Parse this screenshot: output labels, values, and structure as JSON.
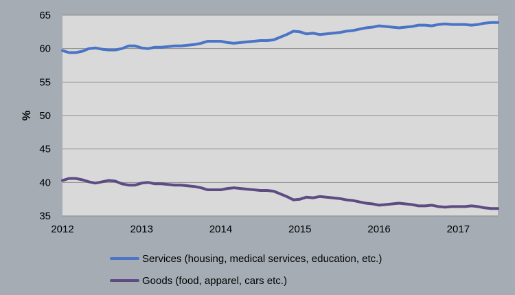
{
  "chart_data": {
    "type": "line",
    "title": "",
    "xlabel": "",
    "ylabel": "%",
    "ylim": [
      35,
      65
    ],
    "xlim": [
      "2012-01",
      "2017-07"
    ],
    "yticks": [
      "35",
      "40",
      "45",
      "50",
      "55",
      "60",
      "65"
    ],
    "xticks": [
      "2012",
      "2013",
      "2014",
      "2015",
      "2016",
      "2017"
    ],
    "grid": "horizontal",
    "legend_position": "bottom",
    "x": [
      "2012-01",
      "2012-02",
      "2012-03",
      "2012-04",
      "2012-05",
      "2012-06",
      "2012-07",
      "2012-08",
      "2012-09",
      "2012-10",
      "2012-11",
      "2012-12",
      "2013-01",
      "2013-02",
      "2013-03",
      "2013-04",
      "2013-05",
      "2013-06",
      "2013-07",
      "2013-08",
      "2013-09",
      "2013-10",
      "2013-11",
      "2013-12",
      "2014-01",
      "2014-02",
      "2014-03",
      "2014-04",
      "2014-05",
      "2014-06",
      "2014-07",
      "2014-08",
      "2014-09",
      "2014-10",
      "2014-11",
      "2014-12",
      "2015-01",
      "2015-02",
      "2015-03",
      "2015-04",
      "2015-05",
      "2015-06",
      "2015-07",
      "2015-08",
      "2015-09",
      "2015-10",
      "2015-11",
      "2015-12",
      "2016-01",
      "2016-02",
      "2016-03",
      "2016-04",
      "2016-05",
      "2016-06",
      "2016-07",
      "2016-08",
      "2016-09",
      "2016-10",
      "2016-11",
      "2016-12",
      "2017-01",
      "2017-02",
      "2017-03",
      "2017-04",
      "2017-05",
      "2017-06",
      "2017-07"
    ],
    "series": [
      {
        "name": "Services (housing, medical services, education, etc.)",
        "color": "#4a74c6",
        "values": [
          59.7,
          59.4,
          59.4,
          59.6,
          60.0,
          60.1,
          59.9,
          59.8,
          59.8,
          60.0,
          60.4,
          60.4,
          60.1,
          60.0,
          60.2,
          60.2,
          60.3,
          60.4,
          60.4,
          60.5,
          60.6,
          60.8,
          61.1,
          61.1,
          61.1,
          60.9,
          60.8,
          60.9,
          61.0,
          61.1,
          61.2,
          61.2,
          61.3,
          61.7,
          62.1,
          62.6,
          62.5,
          62.2,
          62.3,
          62.1,
          62.2,
          62.3,
          62.4,
          62.6,
          62.7,
          62.9,
          63.1,
          63.2,
          63.4,
          63.3,
          63.2,
          63.1,
          63.2,
          63.3,
          63.5,
          63.5,
          63.4,
          63.6,
          63.7,
          63.6,
          63.6,
          63.6,
          63.5,
          63.6,
          63.8,
          63.9,
          63.9
        ]
      },
      {
        "name": "Goods (food, apparel, cars etc.)",
        "color": "#5e4b82",
        "values": [
          40.3,
          40.6,
          40.6,
          40.4,
          40.1,
          39.9,
          40.1,
          40.3,
          40.2,
          39.8,
          39.6,
          39.6,
          39.9,
          40.0,
          39.8,
          39.8,
          39.7,
          39.6,
          39.6,
          39.5,
          39.4,
          39.2,
          38.9,
          38.9,
          38.9,
          39.1,
          39.2,
          39.1,
          39.0,
          38.9,
          38.8,
          38.8,
          38.7,
          38.3,
          37.9,
          37.4,
          37.5,
          37.8,
          37.7,
          37.9,
          37.8,
          37.7,
          37.6,
          37.4,
          37.3,
          37.1,
          36.9,
          36.8,
          36.6,
          36.7,
          36.8,
          36.9,
          36.8,
          36.7,
          36.5,
          36.5,
          36.6,
          36.4,
          36.3,
          36.4,
          36.4,
          36.4,
          36.5,
          36.4,
          36.2,
          36.1,
          36.1
        ]
      }
    ]
  }
}
